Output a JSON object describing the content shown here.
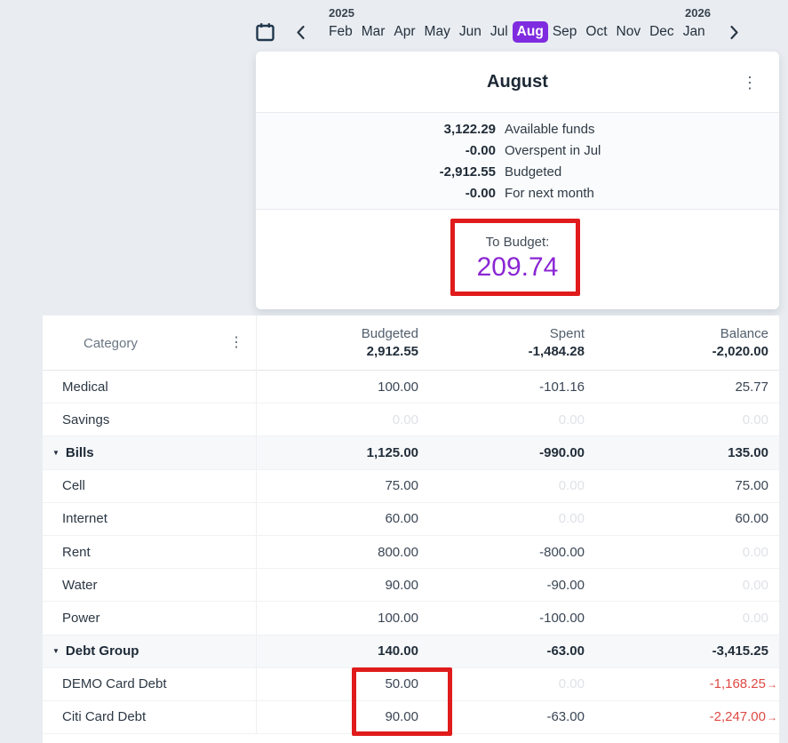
{
  "colors": {
    "page_bg": "#e9edf1",
    "accent_purple": "#7f2ce0",
    "to_budget_purple": "#8a26d4",
    "annotation_red": "#e01b1b",
    "negative_red": "#dd4a44",
    "faded_value": "#dfe2e7"
  },
  "month_picker": {
    "years": [
      "2025",
      "2026"
    ],
    "months": [
      "Feb",
      "Mar",
      "Apr",
      "May",
      "Jun",
      "Jul",
      "Aug",
      "Sep",
      "Oct",
      "Nov",
      "Dec",
      "Jan"
    ],
    "selected_month": "Aug"
  },
  "budget_card": {
    "title": "August",
    "menu_icon": "kebab-menu",
    "summary": [
      {
        "value": "3,122.29",
        "label": "Available funds"
      },
      {
        "value": "-0.00",
        "label": "Overspent in Jul"
      },
      {
        "value": "-2,912.55",
        "label": "Budgeted"
      },
      {
        "value": "-0.00",
        "label": "For next month"
      }
    ],
    "to_budget": {
      "label": "To Budget:",
      "value": "209.74"
    }
  },
  "table": {
    "category_header": "Category",
    "group_toggle_icon": "▼",
    "columns": [
      {
        "label": "Budgeted",
        "total": "2,912.55"
      },
      {
        "label": "Spent",
        "total": "-1,484.28"
      },
      {
        "label": "Balance",
        "total": "-2,020.00"
      }
    ],
    "rows": [
      {
        "name": "Medical",
        "group": false,
        "cells": [
          {
            "text": "100.00",
            "style": "normal"
          },
          {
            "text": "-101.16",
            "style": "normal"
          },
          {
            "text": "25.77",
            "style": "normal"
          }
        ]
      },
      {
        "name": "Savings",
        "group": false,
        "cells": [
          {
            "text": "0.00",
            "style": "faded"
          },
          {
            "text": "0.00",
            "style": "faded"
          },
          {
            "text": "0.00",
            "style": "faded"
          }
        ]
      },
      {
        "name": "Bills",
        "group": true,
        "cells": [
          {
            "text": "1,125.00",
            "style": "normal"
          },
          {
            "text": "-990.00",
            "style": "normal"
          },
          {
            "text": "135.00",
            "style": "normal"
          }
        ]
      },
      {
        "name": "Cell",
        "group": false,
        "cells": [
          {
            "text": "75.00",
            "style": "normal"
          },
          {
            "text": "0.00",
            "style": "faded"
          },
          {
            "text": "75.00",
            "style": "normal"
          }
        ]
      },
      {
        "name": "Internet",
        "group": false,
        "cells": [
          {
            "text": "60.00",
            "style": "normal"
          },
          {
            "text": "0.00",
            "style": "faded"
          },
          {
            "text": "60.00",
            "style": "normal"
          }
        ]
      },
      {
        "name": "Rent",
        "group": false,
        "cells": [
          {
            "text": "800.00",
            "style": "normal"
          },
          {
            "text": "-800.00",
            "style": "normal"
          },
          {
            "text": "0.00",
            "style": "faded"
          }
        ]
      },
      {
        "name": "Water",
        "group": false,
        "cells": [
          {
            "text": "90.00",
            "style": "normal"
          },
          {
            "text": "-90.00",
            "style": "normal"
          },
          {
            "text": "0.00",
            "style": "faded"
          }
        ]
      },
      {
        "name": "Power",
        "group": false,
        "cells": [
          {
            "text": "100.00",
            "style": "normal"
          },
          {
            "text": "-100.00",
            "style": "normal"
          },
          {
            "text": "0.00",
            "style": "faded"
          }
        ]
      },
      {
        "name": "Debt Group",
        "group": true,
        "cells": [
          {
            "text": "140.00",
            "style": "normal"
          },
          {
            "text": "-63.00",
            "style": "normal"
          },
          {
            "text": "-3,415.25",
            "style": "normal"
          }
        ]
      },
      {
        "name": "DEMO Card Debt",
        "group": false,
        "cells": [
          {
            "text": "50.00",
            "style": "normal"
          },
          {
            "text": "0.00",
            "style": "faded"
          },
          {
            "text": "-1,168.25",
            "style": "negative",
            "arrow": true
          }
        ]
      },
      {
        "name": "Citi Card Debt",
        "group": false,
        "cells": [
          {
            "text": "90.00",
            "style": "normal"
          },
          {
            "text": "-63.00",
            "style": "normal"
          },
          {
            "text": "-2,247.00",
            "style": "negative",
            "arrow": true
          }
        ]
      }
    ]
  }
}
